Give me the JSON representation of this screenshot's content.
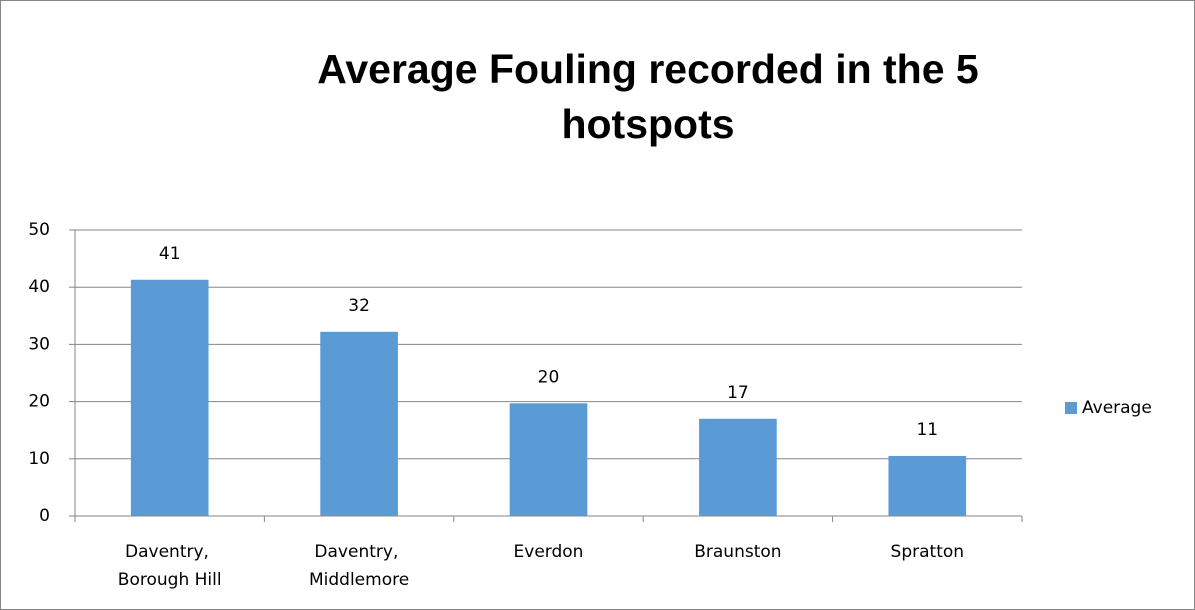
{
  "chart_data": {
    "type": "bar",
    "title": "Average Fouling recorded in the 5 hotspots",
    "categories": [
      "Daventry, Borough Hill",
      "Daventry, Middlemore",
      "Everdon",
      "Braunston",
      "Spratton"
    ],
    "series": [
      {
        "name": "Average",
        "color": "#5b9bd5",
        "values": [
          41.3,
          32.2,
          19.7,
          17.0,
          10.5
        ],
        "value_labels": [
          "41",
          "32",
          "20",
          "17",
          "11"
        ]
      }
    ],
    "ylim": [
      0,
      50
    ],
    "yticks": [
      0,
      10,
      20,
      30,
      40,
      50
    ],
    "grid": true,
    "legend": "right"
  }
}
